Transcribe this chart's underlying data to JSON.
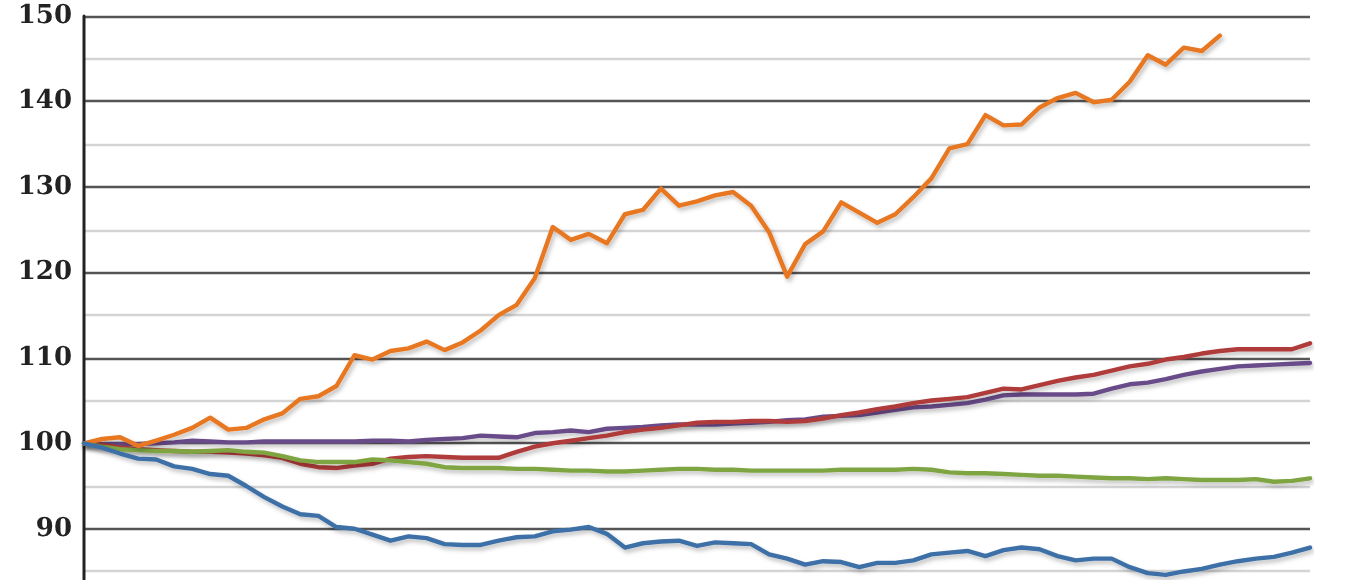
{
  "chart_data": {
    "type": "line",
    "categories": [
      null,
      null,
      null,
      null,
      null,
      null,
      null,
      null,
      null,
      null,
      null,
      null,
      null,
      null,
      null,
      null,
      null,
      null,
      null,
      null,
      null,
      null,
      null,
      null,
      null,
      null,
      null,
      null,
      null,
      null,
      null,
      null,
      null,
      null,
      null,
      null,
      null,
      null,
      null,
      null,
      null,
      null,
      null,
      null,
      null,
      null,
      null,
      null,
      null,
      null,
      null,
      null,
      null,
      null,
      null,
      null,
      null,
      null,
      null,
      null,
      null,
      null,
      null,
      null,
      null,
      null,
      null,
      null,
      null
    ],
    "series": [
      {
        "color": "#6b4c8a",
        "values": [
          100,
          99.9,
          99.9,
          99.9,
          100,
          100.1,
          100.3,
          100.2,
          100.1,
          100.1,
          100.2,
          100.2,
          100.2,
          100.2,
          100.2,
          100.2,
          100.3,
          100.3,
          100.2,
          100.4,
          100.5,
          100.6,
          100.9,
          100.8,
          100.7,
          101.2,
          101.3,
          101.5,
          101.3,
          101.7,
          101.8,
          101.9,
          102.1,
          102.2,
          102.2,
          102.2,
          102.3,
          102.4,
          102.5,
          102.7,
          102.8,
          103.1,
          103.2,
          103.3,
          103.6,
          103.9,
          104.2,
          104.3,
          104.5,
          104.7,
          105.1,
          105.6,
          105.7,
          105.7,
          105.7,
          105.7,
          105.8,
          106.4,
          106.9,
          107.1,
          107.5,
          108,
          108.4,
          108.7,
          109,
          109.1,
          109.2,
          109.3,
          109.4
        ]
      },
      {
        "color": "#b03a3a",
        "values": [
          100,
          99.8,
          99.5,
          99.3,
          99.2,
          99.1,
          99,
          99,
          98.9,
          98.8,
          98.6,
          98.3,
          97.6,
          97.2,
          97.1,
          97.4,
          97.6,
          98.2,
          98.4,
          98.5,
          98.4,
          98.3,
          98.3,
          98.3,
          99,
          99.6,
          100,
          100.3,
          100.6,
          100.9,
          101.3,
          101.6,
          101.8,
          102.1,
          102.4,
          102.5,
          102.5,
          102.6,
          102.6,
          102.5,
          102.6,
          102.9,
          103.3,
          103.6,
          104,
          104.3,
          104.7,
          105,
          105.2,
          105.4,
          105.9,
          106.4,
          106.3,
          106.8,
          107.3,
          107.7,
          108,
          108.5,
          109,
          109.3,
          109.8,
          110.1,
          110.5,
          110.8,
          111,
          111,
          111,
          111,
          111.7
        ]
      },
      {
        "color": "#7fa542",
        "values": [
          100,
          99.6,
          99.3,
          99.2,
          99.1,
          99.1,
          99,
          99.1,
          99.2,
          99,
          98.9,
          98.5,
          98,
          97.8,
          97.8,
          97.8,
          98.1,
          98,
          97.8,
          97.6,
          97.2,
          97.1,
          97.1,
          97.1,
          97,
          97,
          96.9,
          96.8,
          96.8,
          96.7,
          96.7,
          96.8,
          96.9,
          97,
          97,
          96.9,
          96.9,
          96.8,
          96.8,
          96.8,
          96.8,
          96.8,
          96.9,
          96.9,
          96.9,
          96.9,
          97,
          96.9,
          96.6,
          96.5,
          96.5,
          96.4,
          96.3,
          96.2,
          96.2,
          96.1,
          96,
          95.9,
          95.9,
          95.8,
          95.9,
          95.8,
          95.7,
          95.7,
          95.7,
          95.8,
          95.5,
          95.6,
          95.9
        ]
      },
      {
        "color": "#e87722",
        "values": [
          100,
          100.5,
          100.7,
          99.7,
          100.3,
          101,
          101.8,
          103,
          101.6,
          101.8,
          102.8,
          103.5,
          105.2,
          105.5,
          106.7,
          110.3,
          109.8,
          110.8,
          111.1,
          111.9,
          110.9,
          111.8,
          113.2,
          115,
          116.2,
          119.3,
          125.3,
          123.8,
          124.5,
          123.4,
          126.8,
          127.3,
          129.8,
          127.8,
          128.3,
          129,
          129.4,
          127.8,
          124.7,
          119.5,
          123.3,
          124.8,
          128.2,
          127,
          125.8,
          126.8,
          128.8,
          131,
          134.5,
          135,
          138.4,
          137.2,
          137.3,
          139.3,
          140.4,
          141,
          139.9,
          140.2,
          142.3,
          145.4,
          144.3,
          146.3,
          145.9,
          147.7,
          null,
          null,
          null,
          null,
          null
        ]
      },
      {
        "color": "#3d6fa6",
        "values": [
          100,
          99.5,
          98.8,
          98.2,
          98.1,
          97.3,
          97,
          96.4,
          96.2,
          95,
          93.7,
          92.6,
          91.7,
          91.5,
          90.2,
          90,
          89.3,
          88.6,
          89.1,
          88.9,
          88.2,
          88.1,
          88.1,
          88.6,
          89,
          89.1,
          89.7,
          89.9,
          90.2,
          89.4,
          87.8,
          88.3,
          88.5,
          88.6,
          88,
          88.4,
          88.3,
          88.2,
          87,
          86.5,
          85.8,
          86.2,
          86.1,
          85.5,
          86,
          86,
          86.3,
          87,
          87.2,
          87.4,
          86.8,
          87.5,
          87.8,
          87.6,
          86.8,
          86.3,
          86.5,
          86.5,
          85.5,
          84.8,
          84.6,
          85,
          85.3,
          85.8,
          86.2,
          86.5,
          86.7,
          87.2,
          87.8
        ]
      }
    ],
    "ylim": [
      84,
      150
    ],
    "yticks": [
      {
        "value": 85,
        "label": null
      },
      90,
      {
        "value": 95,
        "label": null
      },
      100,
      {
        "value": 105,
        "label": null
      },
      110,
      {
        "value": 115,
        "label": null
      },
      120,
      {
        "value": 125,
        "label": null
      },
      130,
      {
        "value": 135,
        "label": null
      },
      140,
      {
        "value": 145,
        "label": null
      },
      150
    ],
    "grid": "y",
    "tick_labels": "y",
    "line_style": "solid"
  }
}
